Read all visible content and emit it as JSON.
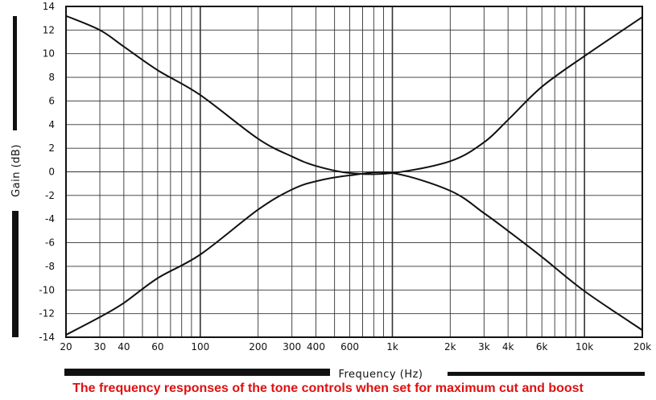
{
  "colors": {
    "ink": "#111111",
    "grid": "#333333",
    "caption": "#e01010",
    "background": "#ffffff"
  },
  "caption": "The frequency responses of the tone controls when set for maximum cut and boost",
  "chart_data": {
    "type": "line",
    "title": "",
    "xlabel": "Frequency (Hz)",
    "ylabel": "Gain (dB)",
    "xscale": "log",
    "xlim": [
      20,
      20000
    ],
    "ylim": [
      -14,
      14
    ],
    "grid": true,
    "x_ticks": [
      20,
      30,
      40,
      60,
      100,
      200,
      300,
      400,
      600,
      1000,
      2000,
      3000,
      4000,
      6000,
      10000,
      20000
    ],
    "x_tick_labels": [
      "20",
      "30",
      "40",
      "60",
      "100",
      "200",
      "300",
      "400",
      "600",
      "1k",
      "2k",
      "3k",
      "4k",
      "6k",
      "10k",
      "20k"
    ],
    "y_ticks": [
      -14,
      -12,
      -10,
      -8,
      -6,
      -4,
      -2,
      0,
      2,
      4,
      6,
      8,
      10,
      12,
      14
    ],
    "y_tick_labels": [
      "-14",
      "-12",
      "-10",
      "-8",
      "-6",
      "-4",
      "-2",
      "0",
      "2",
      "4",
      "6",
      "8",
      "10",
      "12",
      "14"
    ],
    "x_grid_lines": [
      20,
      30,
      40,
      50,
      60,
      70,
      80,
      90,
      100,
      200,
      300,
      400,
      500,
      600,
      700,
      800,
      900,
      1000,
      2000,
      3000,
      4000,
      5000,
      6000,
      7000,
      8000,
      9000,
      10000,
      20000
    ],
    "series": [
      {
        "x": [
          20,
          30,
          40,
          60,
          100,
          200,
          300,
          400,
          600,
          1000,
          2000,
          3000,
          4000,
          6000,
          10000,
          20000
        ],
        "values": [
          13.2,
          12.0,
          10.6,
          8.6,
          6.5,
          2.8,
          1.3,
          0.5,
          -0.1,
          -0.1,
          0.9,
          2.5,
          4.4,
          7.2,
          9.8,
          13.1
        ]
      },
      {
        "x": [
          20,
          30,
          40,
          60,
          100,
          200,
          300,
          400,
          600,
          1000,
          2000,
          3000,
          4000,
          6000,
          10000,
          20000
        ],
        "values": [
          -13.8,
          -12.3,
          -11.1,
          -9.0,
          -7.0,
          -3.2,
          -1.5,
          -0.8,
          -0.3,
          -0.1,
          -1.6,
          -3.5,
          -5.0,
          -7.2,
          -10.1,
          -13.4
        ]
      }
    ]
  }
}
